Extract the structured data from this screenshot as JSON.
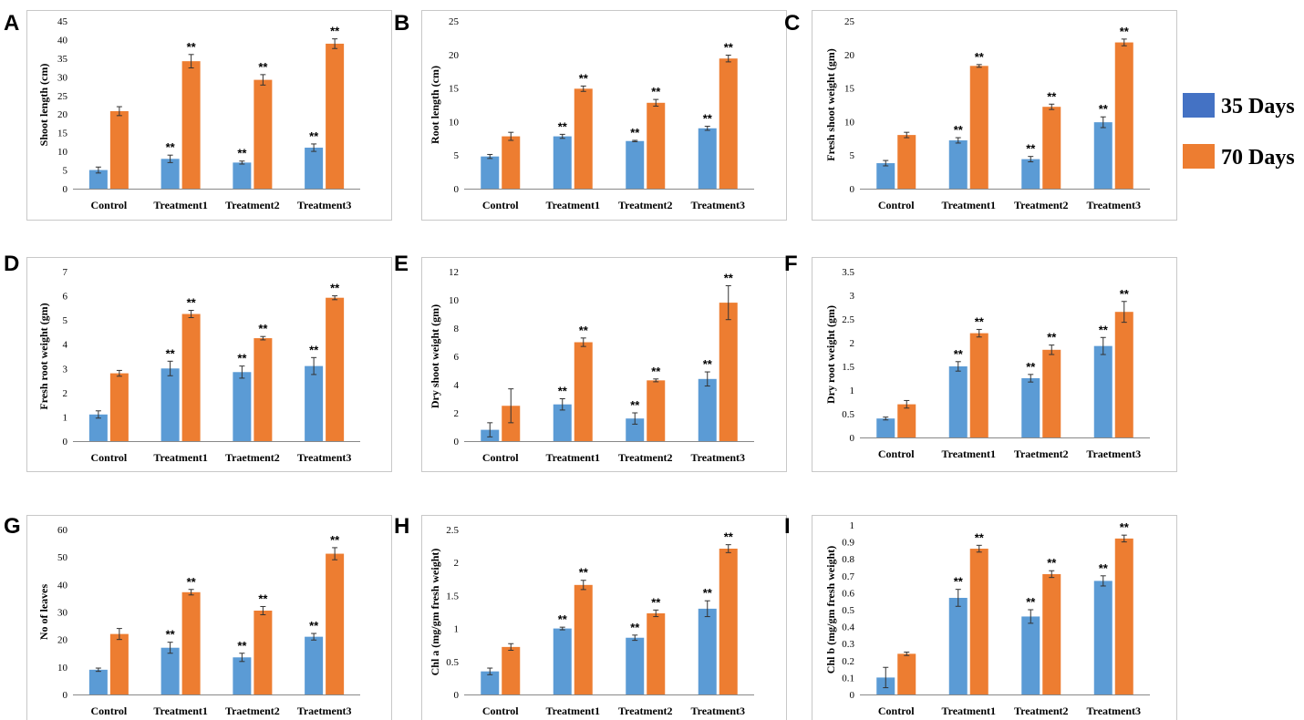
{
  "legend": {
    "series": [
      {
        "name": "35 Days",
        "color": "#4472c4"
      },
      {
        "name": "70 Days",
        "color": "#ed7d31"
      }
    ]
  },
  "colors": {
    "bar35": "#5b9bd5",
    "bar70": "#ed7d31"
  },
  "chart_data": [
    {
      "type": "bar",
      "panel": "A",
      "title": "",
      "ylabel": "Shoot length (cm)",
      "xlabel": "",
      "categories": [
        "Control",
        "Treatment1",
        "Treatment2",
        "Treatment3"
      ],
      "ylim": [
        0,
        45
      ],
      "ytick_step": 5,
      "series": [
        {
          "name": "35 Days",
          "values": [
            5,
            8,
            7,
            11
          ],
          "errors": [
            0.8,
            1,
            0.4,
            1
          ],
          "sig": [
            "",
            "**",
            "**",
            "**"
          ]
        },
        {
          "name": "70 Days",
          "values": [
            20.8,
            34.2,
            29.2,
            38.9
          ],
          "errors": [
            1.2,
            1.8,
            1.4,
            1.3
          ],
          "sig": [
            "",
            "**",
            "**",
            "**"
          ]
        }
      ]
    },
    {
      "type": "bar",
      "panel": "B",
      "title": "",
      "ylabel": "Root length (cm)",
      "xlabel": "",
      "categories": [
        "Control",
        "Treatment1",
        "Treatment2",
        "Treatment3"
      ],
      "ylim": [
        0,
        25
      ],
      "ytick_step": 5,
      "series": [
        {
          "name": "35 Days",
          "values": [
            4.8,
            7.8,
            7.1,
            9
          ],
          "errors": [
            0.3,
            0.3,
            0.1,
            0.3
          ],
          "sig": [
            "",
            "**",
            "**",
            "**"
          ]
        },
        {
          "name": "70 Days",
          "values": [
            7.8,
            14.9,
            12.8,
            19.4
          ],
          "errors": [
            0.6,
            0.4,
            0.5,
            0.5
          ],
          "sig": [
            "",
            "**",
            "**",
            "**"
          ]
        }
      ]
    },
    {
      "type": "bar",
      "panel": "C",
      "title": "",
      "ylabel": "Fresh shoot weight (gm)",
      "xlabel": "",
      "categories": [
        "Control",
        "Treatment1",
        "Treatment2",
        "Treatment3"
      ],
      "ylim": [
        0,
        25
      ],
      "ytick_step": 5,
      "series": [
        {
          "name": "35 Days",
          "values": [
            3.8,
            7.2,
            4.4,
            9.9
          ],
          "errors": [
            0.4,
            0.4,
            0.4,
            0.8
          ],
          "sig": [
            "",
            "**",
            "**",
            "**"
          ]
        },
        {
          "name": "70 Days",
          "values": [
            8,
            18.3,
            12.2,
            21.8
          ],
          "errors": [
            0.4,
            0.2,
            0.4,
            0.5
          ],
          "sig": [
            "",
            "**",
            "**",
            "**"
          ]
        }
      ]
    },
    {
      "type": "bar",
      "panel": "D",
      "title": "",
      "ylabel": "Fresh root weight (gm)",
      "xlabel": "",
      "categories": [
        "Control",
        "Treatment1",
        "Traetment2",
        "Treatment3"
      ],
      "ylim": [
        0,
        7
      ],
      "ytick_step": 1,
      "series": [
        {
          "name": "35 Days",
          "values": [
            1.1,
            3,
            2.85,
            3.1
          ],
          "errors": [
            0.15,
            0.3,
            0.25,
            0.35
          ],
          "sig": [
            "",
            "**",
            "**",
            "**"
          ]
        },
        {
          "name": "70 Days",
          "values": [
            2.8,
            5.25,
            4.25,
            5.92
          ],
          "errors": [
            0.12,
            0.15,
            0.07,
            0.08
          ],
          "sig": [
            "",
            "**",
            "**",
            "**"
          ]
        }
      ]
    },
    {
      "type": "bar",
      "panel": "E",
      "title": "",
      "ylabel": "Dry shoot weight (gm)",
      "xlabel": "",
      "categories": [
        "Control",
        "Treatment1",
        "Treatment2",
        "Treatment3"
      ],
      "ylim": [
        0,
        12
      ],
      "ytick_step": 2,
      "series": [
        {
          "name": "35 Days",
          "values": [
            0.8,
            2.6,
            1.6,
            4.4
          ],
          "errors": [
            0.5,
            0.4,
            0.4,
            0.5
          ],
          "sig": [
            "",
            "**",
            "**",
            "**"
          ]
        },
        {
          "name": "70 Days",
          "values": [
            2.5,
            7,
            4.3,
            9.8
          ],
          "errors": [
            1.2,
            0.3,
            0.1,
            1.2
          ],
          "sig": [
            "",
            "**",
            "**",
            "**"
          ]
        }
      ]
    },
    {
      "type": "bar",
      "panel": "F",
      "title": "",
      "ylabel": "Dry root weight (gm)",
      "xlabel": "",
      "categories": [
        "Control",
        "Treatment1",
        "Traetment2",
        "Traetment3"
      ],
      "ylim": [
        0,
        3.5
      ],
      "ytick_step": 0.5,
      "series": [
        {
          "name": "35 Days",
          "values": [
            0.4,
            1.5,
            1.25,
            1.93
          ],
          "errors": [
            0.03,
            0.1,
            0.08,
            0.18
          ],
          "sig": [
            "",
            "**",
            "**",
            "**"
          ]
        },
        {
          "name": "70 Days",
          "values": [
            0.7,
            2.2,
            1.85,
            2.65
          ],
          "errors": [
            0.08,
            0.08,
            0.1,
            0.22
          ],
          "sig": [
            "",
            "**",
            "**",
            "**"
          ]
        }
      ]
    },
    {
      "type": "bar",
      "panel": "G",
      "title": "",
      "ylabel": "No of leaves",
      "xlabel": "",
      "categories": [
        "Control",
        "Treatment1",
        "Traetment2",
        "Traetment3"
      ],
      "ylim": [
        0,
        60
      ],
      "ytick_step": 10,
      "series": [
        {
          "name": "35 Days",
          "values": [
            9,
            17,
            13.5,
            21
          ],
          "errors": [
            0.6,
            2,
            1.5,
            1.2
          ],
          "sig": [
            "",
            "**",
            "**",
            "**"
          ]
        },
        {
          "name": "70 Days",
          "values": [
            22,
            37.2,
            30.5,
            51.2
          ],
          "errors": [
            2,
            1,
            1.5,
            2.2
          ],
          "sig": [
            "",
            "**",
            "**",
            "**"
          ]
        }
      ]
    },
    {
      "type": "bar",
      "panel": "H",
      "title": "",
      "ylabel": "Chl a (mg/gm fresh weight)",
      "xlabel": "",
      "categories": [
        "Control",
        "Treatment1",
        "Treatment2",
        "Treatment3"
      ],
      "ylim": [
        0,
        2.5
      ],
      "ytick_step": 0.5,
      "series": [
        {
          "name": "35 Days",
          "values": [
            0.35,
            1,
            0.86,
            1.3
          ],
          "errors": [
            0.05,
            0.02,
            0.04,
            0.12
          ],
          "sig": [
            "",
            "**",
            "**",
            "**"
          ]
        },
        {
          "name": "70 Days",
          "values": [
            0.72,
            1.66,
            1.23,
            2.21
          ],
          "errors": [
            0.05,
            0.07,
            0.05,
            0.06
          ],
          "sig": [
            "",
            "**",
            "**",
            "**"
          ]
        }
      ]
    },
    {
      "type": "bar",
      "panel": "I",
      "title": "",
      "ylabel": "Chl b (mg/gm fresh weight)",
      "xlabel": "",
      "categories": [
        "Control",
        "Treatment1",
        "Treatment2",
        "Treatment3"
      ],
      "ylim": [
        0,
        1
      ],
      "ytick_step": 0.1,
      "series": [
        {
          "name": "35 Days",
          "values": [
            0.1,
            0.57,
            0.46,
            0.67
          ],
          "errors": [
            0.06,
            0.05,
            0.04,
            0.03
          ],
          "sig": [
            "",
            "**",
            "**",
            "**"
          ]
        },
        {
          "name": "70 Days",
          "values": [
            0.24,
            0.86,
            0.71,
            0.92
          ],
          "errors": [
            0.01,
            0.02,
            0.02,
            0.02
          ],
          "sig": [
            "",
            "**",
            "**",
            "**"
          ]
        }
      ]
    }
  ]
}
